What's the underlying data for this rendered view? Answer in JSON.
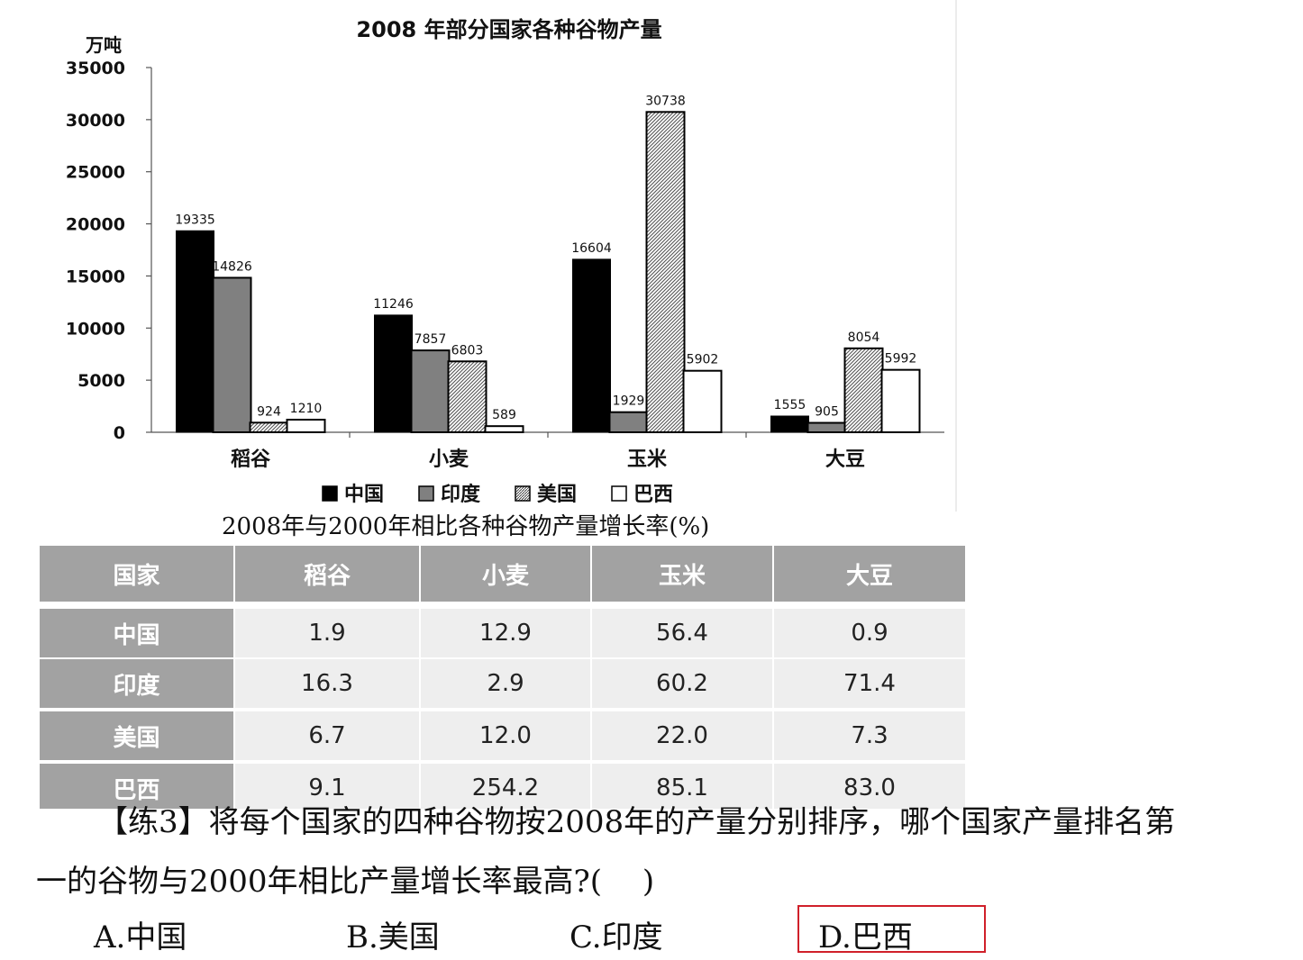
{
  "chart_data": {
    "type": "bar",
    "title": "2008 年部分国家各种谷物产量",
    "ylabel": "万吨",
    "xlabel": "",
    "ylim": [
      0,
      35000
    ],
    "yticks": [
      "35000",
      "30000",
      "25000",
      "20000",
      "15000",
      "10000",
      "5000",
      "0"
    ],
    "ytick_values": [
      35000,
      30000,
      25000,
      20000,
      15000,
      10000,
      5000,
      0
    ],
    "categories": [
      "稻谷",
      "小麦",
      "玉米",
      "大豆"
    ],
    "series": [
      {
        "name": "中国",
        "values": [
          19335,
          11246,
          16604,
          1555
        ],
        "labels": [
          "19335",
          "11246",
          "16604",
          "1555"
        ],
        "fill": "#000000"
      },
      {
        "name": "印度",
        "values": [
          14826,
          7857,
          1929,
          905
        ],
        "labels": [
          "14826",
          "7857",
          "1929",
          "905"
        ],
        "fill": "#808080"
      },
      {
        "name": "美国",
        "values": [
          924,
          6803,
          30738,
          8054
        ],
        "labels": [
          "924",
          "6803",
          "30738",
          "8054"
        ],
        "fill": "hatch"
      },
      {
        "name": "巴西",
        "values": [
          1210,
          589,
          5902,
          5992
        ],
        "labels": [
          "1210",
          "589",
          "5902",
          "5992"
        ],
        "fill": "#ffffff"
      }
    ],
    "legend_position": "bottom",
    "grid": false
  },
  "growth_table": {
    "title": "2008年与2000年相比各种谷物产量增长率(%)",
    "headers": [
      "国家",
      "稻谷",
      "小麦",
      "玉米",
      "大豆"
    ],
    "rows": [
      {
        "country": "中国",
        "values": [
          "1.9",
          "12.9",
          "56.4",
          "0.9"
        ]
      },
      {
        "country": "印度",
        "values": [
          "16.3",
          "2.9",
          "60.2",
          "71.4"
        ]
      },
      {
        "country": "美国",
        "values": [
          "6.7",
          "12.0",
          "22.0",
          "7.3"
        ]
      },
      {
        "country": "巴西",
        "values": [
          "9.1",
          "254.2",
          "85.1",
          "83.0"
        ]
      }
    ]
  },
  "question": {
    "line1": "【练3】将每个国家的四种谷物按2008年的产量分别排序，哪个国家产量排名第",
    "line2": "一的谷物与2000年相比产量增长率最高?(　 )",
    "options": [
      "A.中国",
      "B.美国",
      "C.印度",
      "D.巴西"
    ],
    "highlighted_option": "D.巴西",
    "highlight_color": "#d0202a"
  },
  "colors": {
    "table_header": "#a2a2a2",
    "table_cell": "#eeeeee"
  }
}
